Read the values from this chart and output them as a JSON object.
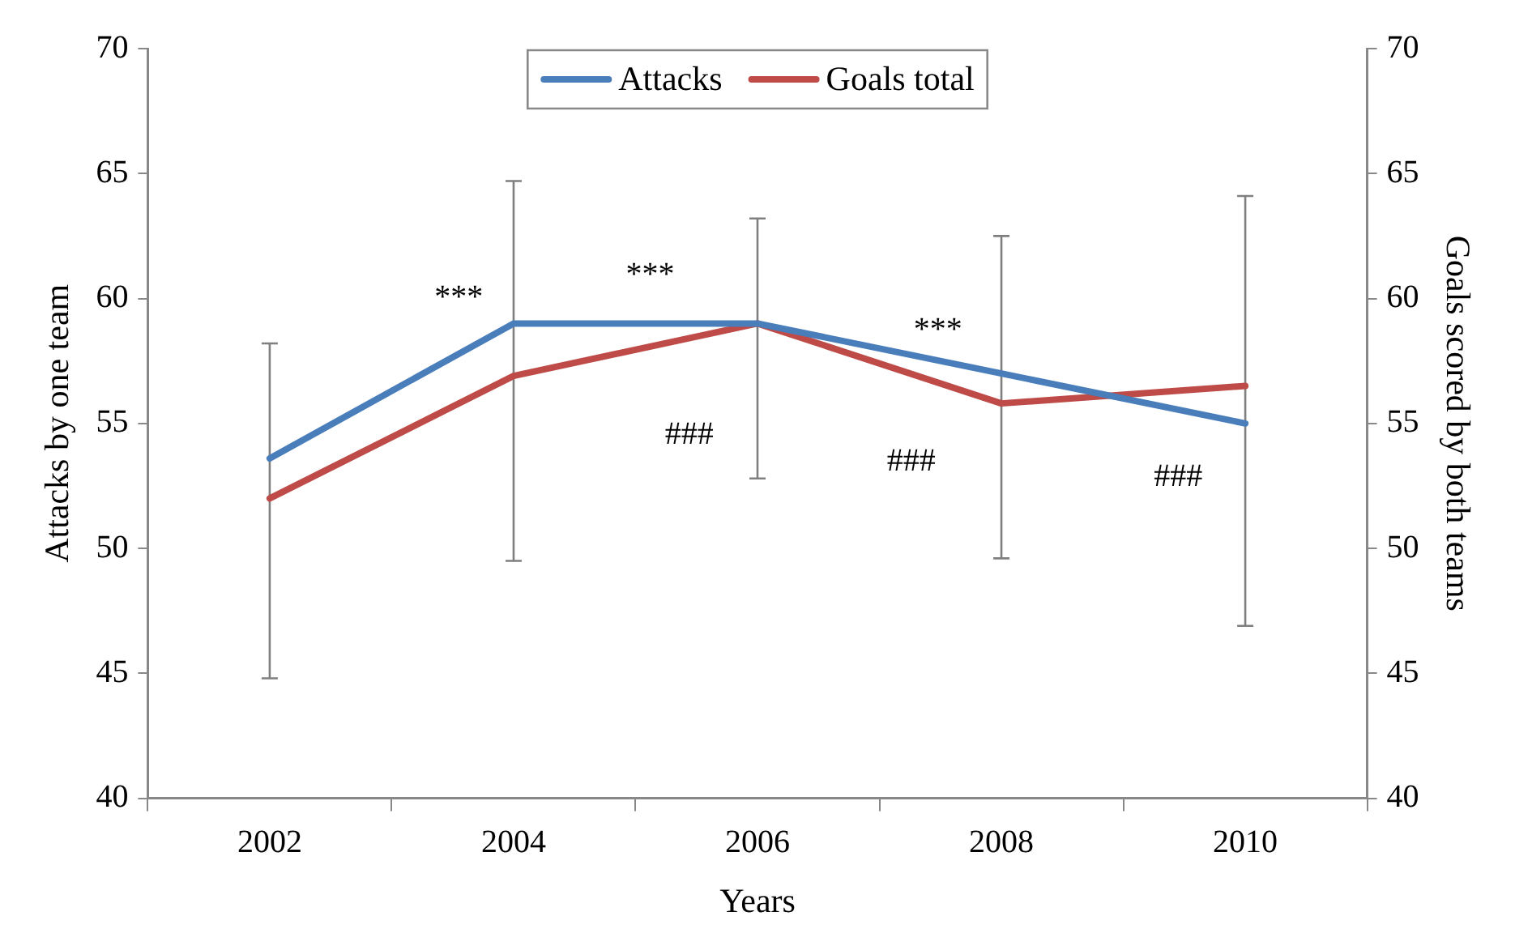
{
  "chart_data": {
    "type": "line",
    "xlabel": "Years",
    "ylabel": "Attacks by one team",
    "y2label": "Goals scored by both teams",
    "categories": [
      "2002",
      "2004",
      "2006",
      "2008",
      "2010"
    ],
    "series": [
      {
        "name": "Attacks",
        "color": "#4a7ebb",
        "values": [
          53.6,
          59.0,
          59.0,
          57.0,
          55.0
        ]
      },
      {
        "name": "Goals total",
        "color": "#be4b48",
        "axis": "y2",
        "values": [
          52.0,
          56.9,
          59.0,
          55.8,
          56.5
        ],
        "errors": [
          [
            44.8,
            58.2
          ],
          [
            49.5,
            64.7
          ],
          [
            52.8,
            63.2
          ],
          [
            49.6,
            62.5
          ],
          [
            46.9,
            64.1
          ]
        ]
      }
    ],
    "ylim": [
      40,
      70
    ],
    "yticks": [
      40,
      45,
      50,
      55,
      60,
      65,
      70
    ],
    "y2lim": [
      40,
      70
    ],
    "y2ticks": [
      40,
      45,
      50,
      55,
      60,
      65,
      70
    ],
    "annotations": [
      "***",
      "***",
      "***",
      "###",
      "###",
      "###"
    ],
    "grid": false,
    "legend": "top",
    "marker": "none",
    "line_style": "solid"
  }
}
